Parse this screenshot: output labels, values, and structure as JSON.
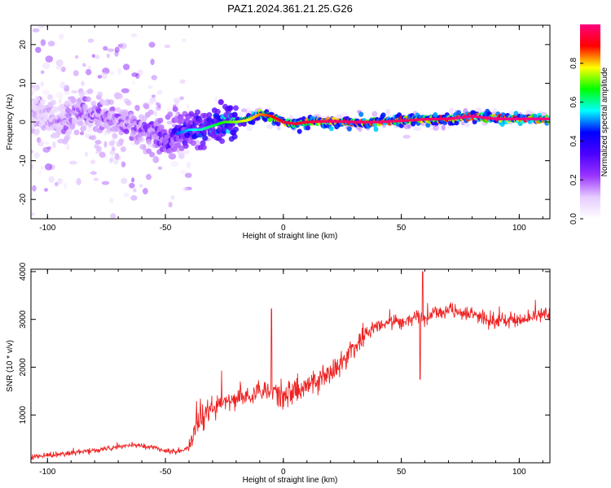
{
  "title": "PAZ1.2024.361.21.25.G26",
  "chart_data": [
    {
      "type": "heatmap",
      "xlabel": "Height of straight line (km)",
      "ylabel": "Frequency (Hz)",
      "xlim": [
        -107,
        113
      ],
      "ylim": [
        -25,
        25
      ],
      "xticks": [
        -100,
        -50,
        0,
        50,
        100
      ],
      "yticks": [
        -20,
        -10,
        0,
        10,
        20
      ],
      "grid": false,
      "colorbar": {
        "label": "Normalized spectral amplitude",
        "range": [
          0,
          1
        ],
        "ticks": [
          0.0,
          0.2,
          0.4,
          0.6,
          0.8
        ],
        "colors": [
          "#ffffff",
          "#e6ccff",
          "#9933ff",
          "#4b00ff",
          "#0000ff",
          "#00ffff",
          "#00ff00",
          "#ffff00",
          "#ff0000",
          "#ff0080"
        ]
      },
      "ridge": {
        "x": [
          -107,
          -95,
          -85,
          -75,
          -65,
          -55,
          -50,
          -45,
          -40,
          -35,
          -30,
          -25,
          -20,
          -15,
          -10,
          -5,
          0,
          5,
          10,
          20,
          30,
          40,
          50,
          60,
          70,
          80,
          90,
          100,
          113
        ],
        "frequency": [
          2,
          0,
          3,
          1,
          -1,
          -2,
          -4,
          -3,
          -2,
          -2,
          -1,
          0,
          0,
          0.5,
          2,
          1.5,
          0,
          -0.5,
          0,
          0.2,
          0,
          0,
          0.3,
          0.7,
          0.8,
          1.5,
          0.8,
          0.8,
          0.8
        ],
        "amplitude": [
          0.15,
          0.2,
          0.25,
          0.25,
          0.25,
          0.3,
          0.35,
          0.4,
          0.45,
          0.5,
          0.55,
          0.6,
          0.65,
          0.7,
          0.75,
          0.8,
          0.85,
          0.85,
          0.85,
          0.9,
          0.9,
          0.9,
          0.9,
          0.9,
          0.9,
          0.95,
          0.95,
          0.95,
          0.95
        ]
      }
    },
    {
      "type": "line",
      "xlabel": "Height of straight line (km)",
      "ylabel": "SNR (10 * v/v)",
      "xlim": [
        -107,
        113
      ],
      "ylim": [
        0,
        4050
      ],
      "xticks": [
        -100,
        -50,
        0,
        50,
        100
      ],
      "yticks": [
        1000,
        2000,
        3000,
        4000
      ],
      "grid": false,
      "series": [
        {
          "color": "#ee2222",
          "x": [
            -107,
            -100,
            -95,
            -90,
            -85,
            -80,
            -75,
            -70,
            -65,
            -60,
            -55,
            -50,
            -45,
            -40,
            -37,
            -35,
            -30,
            -25,
            -20,
            -15,
            -12,
            -10,
            -5,
            0,
            5,
            10,
            15,
            20,
            25,
            30,
            35,
            40,
            45,
            50,
            55,
            57,
            60,
            65,
            70,
            75,
            80,
            85,
            90,
            95,
            100,
            105,
            113
          ],
          "y": [
            130,
            150,
            170,
            200,
            230,
            260,
            290,
            330,
            360,
            360,
            320,
            250,
            230,
            300,
            800,
            1000,
            1200,
            1250,
            1300,
            1400,
            1500,
            1550,
            1500,
            1400,
            1500,
            1600,
            1750,
            1850,
            2150,
            2400,
            2700,
            2850,
            2950,
            2950,
            3050,
            3100,
            3050,
            3150,
            3200,
            3150,
            3100,
            3000,
            2950,
            3000,
            3000,
            3050,
            3150
          ]
        }
      ]
    }
  ]
}
